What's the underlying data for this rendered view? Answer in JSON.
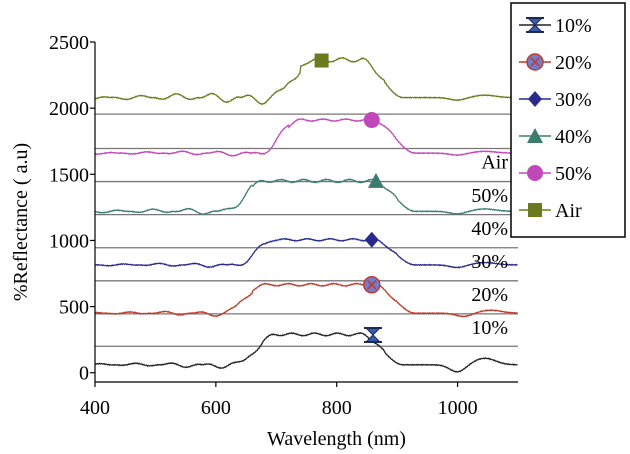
{
  "chart_data": {
    "type": "line",
    "title": "",
    "xlabel": "Wavelength (nm)",
    "ylabel": "%Reflectance ( a.u)",
    "xlim": [
      400,
      1100
    ],
    "ylim": [
      -70,
      2500
    ],
    "xticks": [
      400,
      600,
      800,
      1000
    ],
    "yticks": [
      0,
      500,
      1000,
      1500,
      2000,
      2500
    ],
    "grid": false,
    "panel_separators": [
      200,
      445,
      695,
      945,
      1195,
      1445,
      1695,
      1955
    ],
    "legend_position": "outside-right",
    "series": [
      {
        "name": "10%",
        "panel_label": "10%",
        "color": "#222222",
        "marker": "hourglass",
        "marker_x": 860,
        "marker_y": 285,
        "baseline": 60,
        "peak_start": 660,
        "peak_end": 880,
        "peak_height": 230,
        "wiggle": 40,
        "dip_at": 1000,
        "dip_depth": 55
      },
      {
        "name": "20%",
        "panel_label": "20%",
        "color": "#c0392b",
        "marker": "circle-x",
        "marker_x": 858,
        "marker_y": 665,
        "baseline": 450,
        "peak_start": 640,
        "peak_end": 900,
        "peak_height": 215,
        "wiggle": 35,
        "dip_at": 1010,
        "dip_depth": 25
      },
      {
        "name": "30%",
        "panel_label": "30%",
        "color": "#2a2a8c",
        "marker": "diamond",
        "marker_x": 858,
        "marker_y": 1005,
        "baseline": 815,
        "peak_start": 660,
        "peak_end": 900,
        "peak_height": 190,
        "wiggle": 30,
        "dip_at": 1000,
        "dip_depth": 20
      },
      {
        "name": "40%",
        "panel_label": "40%",
        "color": "#3a7d6f",
        "marker": "triangle",
        "marker_x": 865,
        "marker_y": 1450,
        "baseline": 1220,
        "peak_start": 640,
        "peak_end": 900,
        "peak_height": 230,
        "wiggle": 45,
        "dip_at": 1000,
        "dip_depth": 20
      },
      {
        "name": "50%",
        "panel_label": "50%",
        "color": "#c048b8",
        "marker": "circle",
        "marker_x": 858,
        "marker_y": 1910,
        "baseline": 1660,
        "peak_start": 700,
        "peak_end": 900,
        "peak_height": 250,
        "wiggle": 30,
        "dip_at": 1000,
        "dip_depth": 15
      },
      {
        "name": "Air",
        "panel_label": "Air",
        "color": "#6b7a1e",
        "marker": "square",
        "marker_x": 775,
        "marker_y": 2360,
        "baseline": 2080,
        "peak_start": 720,
        "peak_end": 880,
        "peak_height": 285,
        "wiggle": 60,
        "dip_at": 1000,
        "dip_depth": 20
      }
    ]
  },
  "colors": {
    "axis": "#000000",
    "separator": "#777777",
    "legend_border": "#000000"
  }
}
